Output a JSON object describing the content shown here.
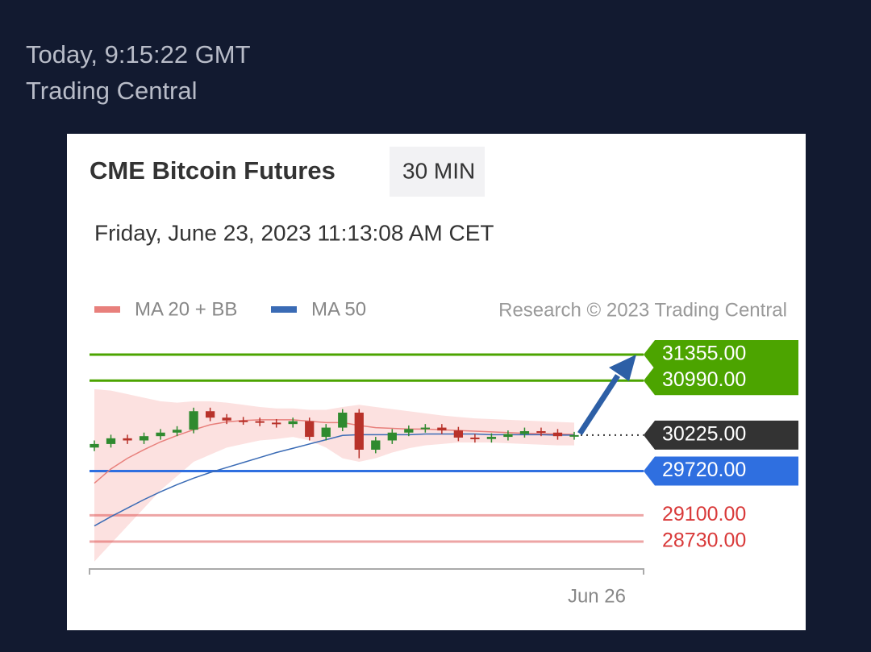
{
  "article": {
    "time": "Today, 9:15:22 GMT",
    "source": "Trading Central"
  },
  "chart_data": {
    "type": "candlestick",
    "title": "CME Bitcoin Futures",
    "interval": "30 MIN",
    "subtitle": "Friday, June 23, 2023 11:13:08 AM CET",
    "credit": "Research © 2023 Trading Central",
    "x_label": "Jun 26",
    "ylim": [
      28400,
      31600
    ],
    "up_color": "#2f8a2f",
    "down_color": "#b8322a",
    "open": [
      30050,
      30100,
      30180,
      30150,
      30210,
      30260,
      30300,
      30560,
      30470,
      30430,
      30420,
      30400,
      30380,
      30420,
      30200,
      30330,
      30540,
      30020,
      30150,
      30260,
      30310,
      30330,
      30290,
      30190,
      30170,
      30200,
      30240,
      30280,
      30260,
      30210
    ],
    "close": [
      30100,
      30180,
      30150,
      30210,
      30260,
      30300,
      30560,
      30470,
      30430,
      30420,
      30400,
      30380,
      30420,
      30200,
      30330,
      30540,
      30020,
      30150,
      30260,
      30310,
      30330,
      30290,
      30190,
      30170,
      30200,
      30240,
      30280,
      30260,
      30210,
      30225
    ],
    "high": [
      30150,
      30230,
      30230,
      30260,
      30310,
      30350,
      30610,
      30610,
      30520,
      30480,
      30470,
      30450,
      30470,
      30470,
      30380,
      30590,
      30590,
      30200,
      30310,
      30360,
      30380,
      30380,
      30340,
      30240,
      30250,
      30290,
      30330,
      30330,
      30310,
      30270
    ],
    "low": [
      30000,
      30050,
      30100,
      30100,
      30160,
      30210,
      30250,
      30420,
      30380,
      30370,
      30350,
      30330,
      30330,
      30150,
      30150,
      30280,
      29900,
      29970,
      30100,
      30210,
      30260,
      30240,
      30140,
      30120,
      30120,
      30150,
      30190,
      30210,
      30160,
      30160
    ],
    "series": [
      {
        "name": "MA 20 + BB",
        "color": "#e8807c",
        "values": [
          29550,
          29750,
          29900,
          30020,
          30130,
          30220,
          30300,
          30370,
          30410,
          30430,
          30440,
          30440,
          30440,
          30420,
          30400,
          30400,
          30360,
          30330,
          30320,
          30310,
          30310,
          30300,
          30290,
          30280,
          30270,
          30260,
          30250,
          30245,
          30240,
          30235
        ],
        "upper": [
          30870,
          30850,
          30800,
          30750,
          30700,
          30680,
          30700,
          30700,
          30680,
          30650,
          30620,
          30600,
          30600,
          30580,
          30580,
          30620,
          30650,
          30620,
          30590,
          30560,
          30530,
          30500,
          30480,
          30460,
          30450,
          30440,
          30430,
          30420,
          30410,
          30400
        ],
        "lower": [
          28450,
          28700,
          28950,
          29200,
          29450,
          29650,
          29850,
          29950,
          30050,
          30100,
          30150,
          30170,
          30200,
          30150,
          30050,
          29900,
          29850,
          29900,
          29980,
          30040,
          30080,
          30100,
          30120,
          30120,
          30120,
          30110,
          30100,
          30090,
          30080,
          30080
        ]
      },
      {
        "name": "MA 50",
        "color": "#3a6bb5",
        "values": [
          28950,
          29080,
          29200,
          29320,
          29430,
          29530,
          29620,
          29700,
          29770,
          29840,
          29910,
          29980,
          30040,
          30100,
          30160,
          30220,
          30230,
          30230,
          30230,
          30230,
          30240,
          30240,
          30240,
          30240,
          30230,
          30230,
          30230,
          30230,
          30225,
          30225
        ]
      }
    ],
    "levels": [
      {
        "value": 31355,
        "label": "31355.00",
        "color": "#4ca400"
      },
      {
        "value": 30990,
        "label": "30990.00",
        "color": "#4ca400"
      },
      {
        "value": 30225,
        "label": "30225.00",
        "color": "#333333"
      },
      {
        "value": 29720,
        "label": "29720.00",
        "color": "#2f6fe0"
      },
      {
        "value": 29100,
        "label": "29100.00",
        "color": "#d93a3a"
      },
      {
        "value": 28730,
        "label": "28730.00",
        "color": "#d93a3a"
      }
    ]
  }
}
